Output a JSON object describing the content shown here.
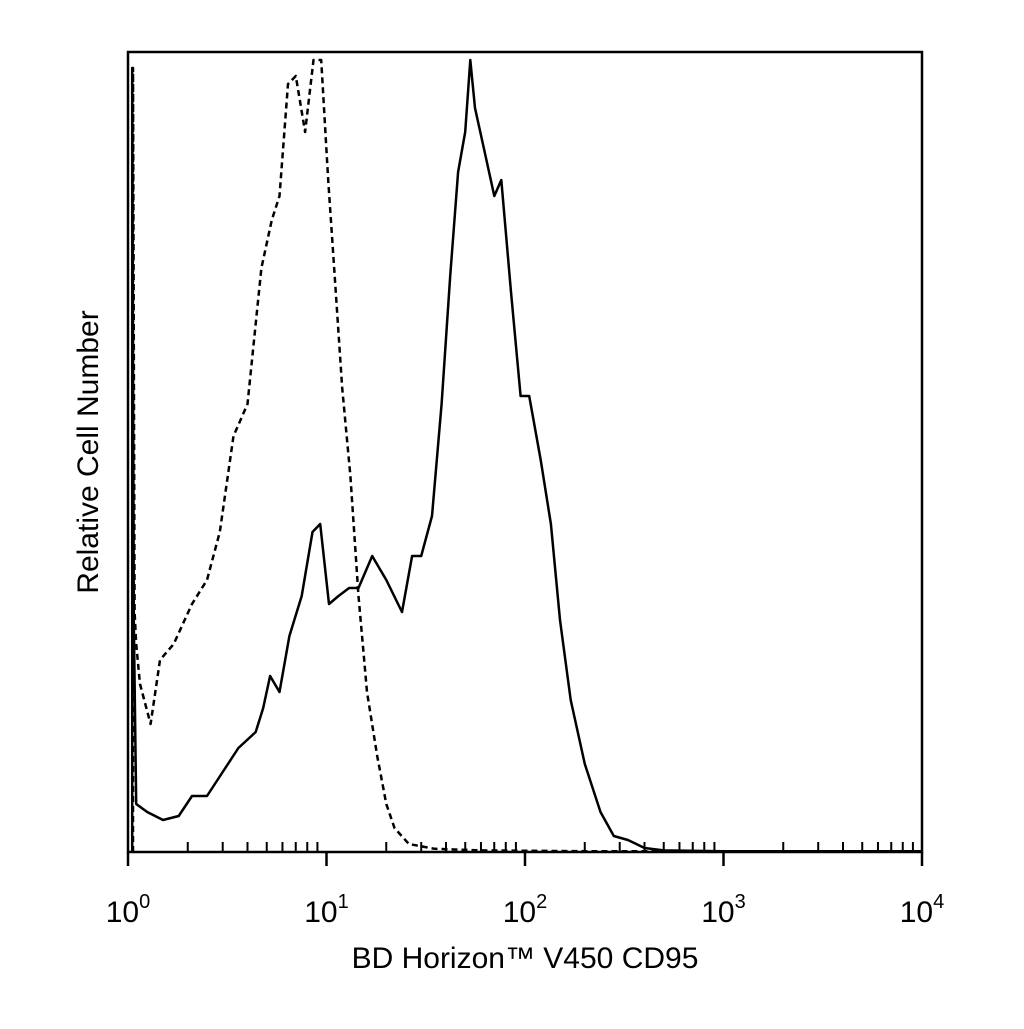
{
  "chart_data": {
    "type": "line",
    "title": "",
    "xlabel": "BD Horizon™ V450 CD95",
    "ylabel": "Relative Cell Number",
    "x_scale": "log",
    "xlim": [
      1,
      10000
    ],
    "ylim": [
      0,
      100
    ],
    "grid": false,
    "legend": "none",
    "x_ticks": [
      {
        "base": "10",
        "exp": "0",
        "value": 1
      },
      {
        "base": "10",
        "exp": "1",
        "value": 10
      },
      {
        "base": "10",
        "exp": "2",
        "value": 100
      },
      {
        "base": "10",
        "exp": "3",
        "value": 1000
      },
      {
        "base": "10",
        "exp": "4",
        "value": 10000
      }
    ],
    "series": [
      {
        "style": "dashed",
        "color": "#000000",
        "points": [
          [
            1.06,
            0
          ],
          [
            1.06,
            98
          ],
          [
            1.08,
            30
          ],
          [
            1.1,
            26
          ],
          [
            1.15,
            21
          ],
          [
            1.3,
            16
          ],
          [
            1.45,
            24
          ],
          [
            1.7,
            26
          ],
          [
            2.1,
            31
          ],
          [
            2.5,
            34
          ],
          [
            2.9,
            40
          ],
          [
            3.4,
            52
          ],
          [
            4.0,
            56
          ],
          [
            4.7,
            73
          ],
          [
            5.3,
            79
          ],
          [
            5.8,
            82
          ],
          [
            6.4,
            96
          ],
          [
            7.0,
            97
          ],
          [
            7.8,
            90
          ],
          [
            8.6,
            99
          ],
          [
            9.4,
            99
          ],
          [
            10.2,
            84
          ],
          [
            11.0,
            72
          ],
          [
            12.0,
            58
          ],
          [
            13.2,
            47
          ],
          [
            14.5,
            32
          ],
          [
            16.0,
            20
          ],
          [
            18.0,
            12
          ],
          [
            20.0,
            6
          ],
          [
            22.0,
            3
          ],
          [
            26.0,
            1
          ],
          [
            35.0,
            0.4
          ],
          [
            60.0,
            0.2
          ],
          [
            200.0,
            0.1
          ],
          [
            10000,
            0.1
          ]
        ]
      },
      {
        "style": "solid",
        "color": "#000000",
        "points": [
          [
            1.05,
            0
          ],
          [
            1.05,
            98
          ],
          [
            1.07,
            29
          ],
          [
            1.1,
            6
          ],
          [
            1.25,
            5
          ],
          [
            1.5,
            4
          ],
          [
            1.8,
            4.5
          ],
          [
            2.1,
            7
          ],
          [
            2.5,
            7
          ],
          [
            3.0,
            10
          ],
          [
            3.6,
            13
          ],
          [
            4.4,
            15
          ],
          [
            4.8,
            18
          ],
          [
            5.2,
            22
          ],
          [
            5.8,
            20
          ],
          [
            6.5,
            27
          ],
          [
            7.5,
            32
          ],
          [
            8.5,
            40
          ],
          [
            9.3,
            41
          ],
          [
            10.3,
            31
          ],
          [
            11.5,
            32
          ],
          [
            13.0,
            33
          ],
          [
            14.5,
            33
          ],
          [
            17.0,
            37
          ],
          [
            20.0,
            34
          ],
          [
            24.0,
            30
          ],
          [
            27.0,
            37
          ],
          [
            30.0,
            37
          ],
          [
            34.0,
            42
          ],
          [
            38.0,
            56
          ],
          [
            42.0,
            72
          ],
          [
            46.0,
            85
          ],
          [
            50.0,
            90
          ],
          [
            53.0,
            99
          ],
          [
            56.0,
            93
          ],
          [
            62.0,
            88
          ],
          [
            70.0,
            82
          ],
          [
            76.0,
            84
          ],
          [
            85.0,
            70
          ],
          [
            95.0,
            57
          ],
          [
            105.0,
            57
          ],
          [
            120.0,
            49
          ],
          [
            135.0,
            41
          ],
          [
            150.0,
            29
          ],
          [
            170.0,
            19
          ],
          [
            200.0,
            11
          ],
          [
            240.0,
            5
          ],
          [
            280.0,
            2
          ],
          [
            330.0,
            1.5
          ],
          [
            400.0,
            0.5
          ],
          [
            500.0,
            0.2
          ],
          [
            1000.0,
            0.1
          ],
          [
            10000,
            0.1
          ]
        ]
      }
    ]
  }
}
